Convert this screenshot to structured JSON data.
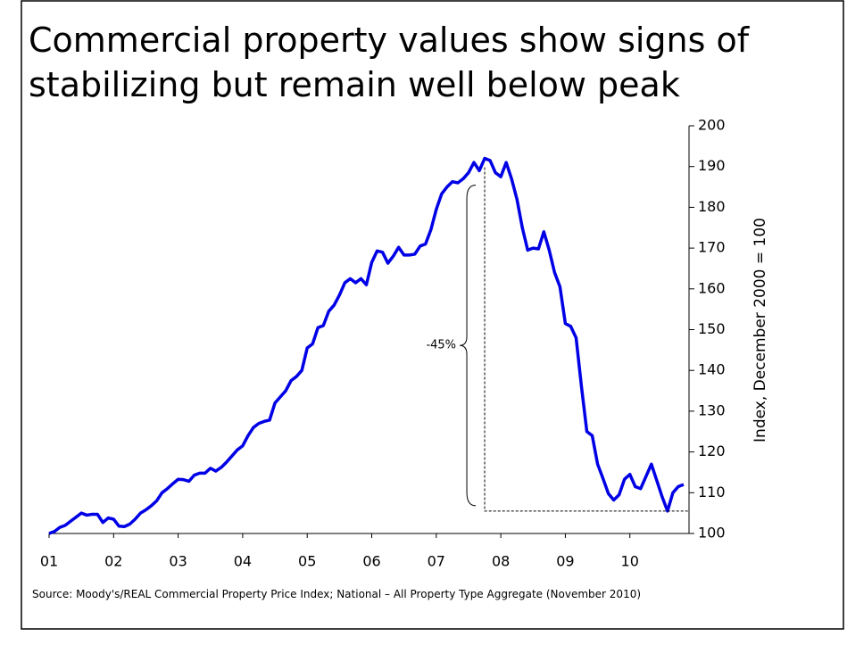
{
  "chart_data": {
    "type": "line",
    "title_lines": [
      "Commercial property values show signs of",
      "stabilizing but remain well below peak"
    ],
    "y_axis_label": "Index, December 2000 = 100",
    "source": "Source: Moody's/REAL Commercial Property Price Index; National – All Property Type Aggregate (November 2010)",
    "annotation": "-45%",
    "x": [
      0,
      1,
      2,
      3,
      4,
      5,
      6,
      7,
      8,
      9,
      10,
      11,
      12,
      13,
      14,
      15,
      16,
      17,
      18,
      19,
      20,
      21,
      22,
      23,
      24,
      25,
      26,
      27,
      28,
      29,
      30,
      31,
      32,
      33,
      34,
      35,
      36,
      37,
      38,
      39,
      40,
      41,
      42,
      43,
      44,
      45,
      46,
      47,
      48,
      49,
      50,
      51,
      52,
      53,
      54,
      55,
      56,
      57,
      58,
      59,
      60,
      61,
      62,
      63,
      64,
      65,
      66,
      67,
      68,
      69,
      70,
      71,
      72,
      73,
      74,
      75,
      76,
      77,
      78,
      79,
      80,
      81,
      82,
      83,
      84,
      85,
      86,
      87,
      88,
      89,
      90,
      91,
      92,
      93,
      94,
      95,
      96,
      97,
      98,
      99,
      100,
      101,
      102,
      103,
      104,
      105,
      106,
      107,
      108,
      109,
      110,
      111,
      112,
      113,
      114,
      115,
      116,
      117,
      118
    ],
    "series": [
      {
        "name": "Index",
        "color": "#0000e6",
        "values": [
          100,
          100.5,
          101.5,
          102,
          103,
          104,
          105,
          104.5,
          104.7,
          104.7,
          102.7,
          103.8,
          103.5,
          101.8,
          101.7,
          102.3,
          103.5,
          105,
          105.8,
          106.8,
          108,
          110,
          111,
          112.2,
          113.3,
          113.2,
          112.8,
          114.3,
          114.8,
          114.8,
          116,
          115.3,
          116.2,
          117.5,
          119,
          120.5,
          121.5,
          124,
          126,
          127,
          127.5,
          127.8,
          132,
          133.5,
          135,
          137.5,
          138.5,
          140,
          145.5,
          146.5,
          150.5,
          151,
          154.5,
          156,
          158.5,
          161.5,
          162.5,
          161.5,
          162.5,
          161,
          166.5,
          169.3,
          169,
          166.3,
          168,
          170.2,
          168.3,
          168.3,
          168.5,
          170.5,
          171,
          174.5,
          179.5,
          183.3,
          185,
          186.3,
          186,
          187,
          188.5,
          191,
          189,
          192,
          191.5,
          188.5,
          187.5,
          191,
          187,
          182,
          175,
          169.5,
          170,
          169.8,
          174,
          169.5,
          164,
          160.5,
          151.5,
          150.8,
          148,
          136,
          125,
          124,
          117,
          113.5,
          109.8,
          108.2,
          109.5,
          113.3,
          114.5,
          111.5,
          111,
          114,
          117,
          113,
          109,
          105.5,
          110,
          111.5,
          112
        ]
      }
    ],
    "xlim": [
      0,
      119
    ],
    "xticks": [
      {
        "value": 0,
        "label": "01"
      },
      {
        "value": 12,
        "label": "02"
      },
      {
        "value": 24,
        "label": "03"
      },
      {
        "value": 36,
        "label": "04"
      },
      {
        "value": 48,
        "label": "05"
      },
      {
        "value": 60,
        "label": "06"
      },
      {
        "value": 72,
        "label": "07"
      },
      {
        "value": 84,
        "label": "08"
      },
      {
        "value": 96,
        "label": "09"
      },
      {
        "value": 108,
        "label": "10"
      }
    ],
    "ylim": [
      100,
      200
    ],
    "yticks": [
      100,
      110,
      120,
      130,
      140,
      150,
      160,
      170,
      180,
      190,
      200
    ],
    "grid": false
  }
}
